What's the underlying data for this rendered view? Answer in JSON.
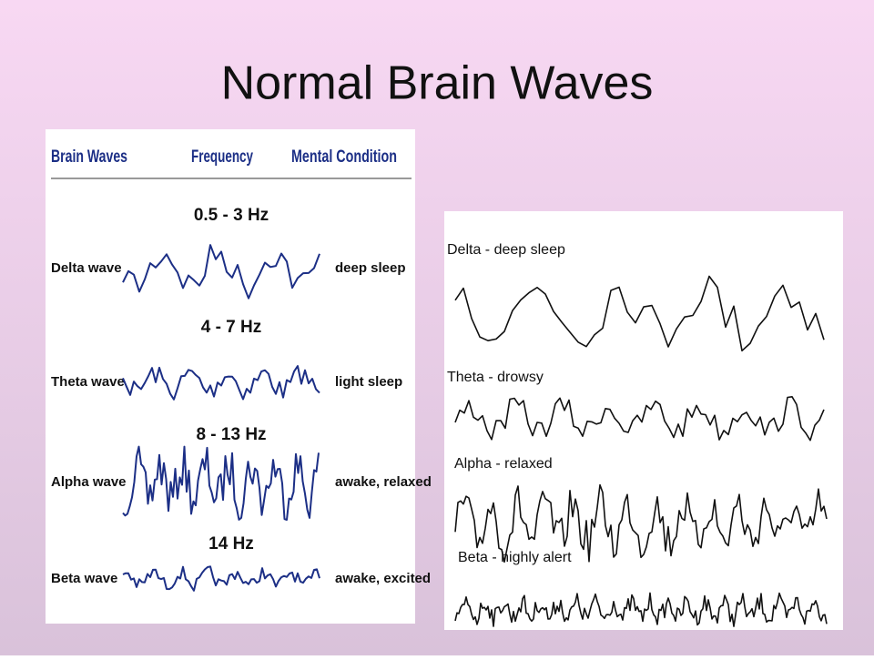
{
  "title": "Normal Brain Waves",
  "left_panel": {
    "headers": [
      "Brain Waves",
      "Frequency",
      "Mental Condition"
    ],
    "rows": [
      {
        "frequency": "0.5 - 3 Hz",
        "name": "Delta wave",
        "condition": "deep sleep"
      },
      {
        "frequency": "4 - 7 Hz",
        "name": "Theta wave",
        "condition": "light sleep"
      },
      {
        "frequency": "8 - 13 Hz",
        "name": "Alpha wave",
        "condition": "awake, relaxed"
      },
      {
        "frequency": "14 Hz",
        "name": "Beta wave",
        "condition": "awake, excited"
      }
    ]
  },
  "right_panel": {
    "labels": [
      "Delta - deep sleep",
      "Theta - drowsy",
      "Alpha - relaxed",
      "Beta - highly alert"
    ]
  }
}
